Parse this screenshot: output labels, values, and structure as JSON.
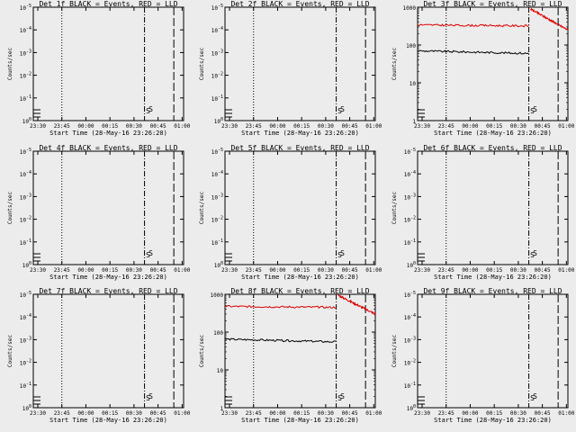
{
  "figure": {
    "background": "#ececec",
    "series_colors": {
      "events": "#000000",
      "lld": "#dd0000"
    },
    "time_ticks": [
      "23:30",
      "23:45",
      "00:00",
      "00:15",
      "00:30",
      "00:45",
      "01:00"
    ],
    "xlabel": "Start Time (28-May-16 23:26:20)"
  },
  "chart_data": [
    {
      "type": "line",
      "title": "Det 1f BLACK = Events, RED = LLD",
      "ylabel": "Counts/sec",
      "ytick_labels": [
        "10^0",
        "10^-1",
        "10^-2",
        "10^-3",
        "10^-4",
        "10^-5"
      ],
      "has_data": false,
      "markers": [
        "a",
        "b",
        "c"
      ],
      "symbols": [
        "S",
        "S"
      ],
      "series": []
    },
    {
      "type": "line",
      "title": "Det 2f BLACK = Events, RED = LLD",
      "ylabel": "Counts/sec",
      "ytick_labels": [
        "10^0",
        "10^-1",
        "10^-2",
        "10^-3",
        "10^-4",
        "10^-5"
      ],
      "has_data": false,
      "markers": [
        "a",
        "b",
        "c"
      ],
      "symbols": [
        "S",
        "S"
      ],
      "series": []
    },
    {
      "type": "line",
      "title": "Det 3f BLACK = Events, RED = LLD",
      "ylabel": "Counts/sec",
      "ytick_labels": [
        "1",
        "10",
        "100",
        "1000"
      ],
      "yscale": "log",
      "ylim": [
        1,
        1000
      ],
      "has_data": true,
      "markers": [
        "a",
        "b",
        "c"
      ],
      "symbols": [
        "S",
        "S"
      ],
      "series": [
        {
          "kind": "events",
          "segments": [
            {
              "x": [
                0,
                0.74
              ],
              "values": [
                70,
                60
              ]
            }
          ]
        },
        {
          "kind": "lld",
          "segments": [
            {
              "x": [
                0,
                0.74
              ],
              "values": [
                340,
                320
              ]
            },
            {
              "x": [
                0.75,
                1.0
              ],
              "values": [
                900,
                250
              ]
            }
          ]
        }
      ]
    },
    {
      "type": "line",
      "title": "Det 4f BLACK = Events, RED = LLD",
      "ylabel": "Counts/sec",
      "ytick_labels": [
        "10^0",
        "10^-1",
        "10^-2",
        "10^-3",
        "10^-4",
        "10^-5"
      ],
      "has_data": false,
      "markers": [
        "a",
        "b",
        "c"
      ],
      "symbols": [
        "S",
        "S"
      ],
      "series": []
    },
    {
      "type": "line",
      "title": "Det 5f BLACK = Events, RED = LLD",
      "ylabel": "Counts/sec",
      "ytick_labels": [
        "10^0",
        "10^-1",
        "10^-2",
        "10^-3",
        "10^-4",
        "10^-5"
      ],
      "has_data": false,
      "markers": [
        "a",
        "b",
        "c"
      ],
      "symbols": [
        "S",
        "S"
      ],
      "series": []
    },
    {
      "type": "line",
      "title": "Det 6f BLACK = Events, RED = LLD",
      "ylabel": "Counts/sec",
      "ytick_labels": [
        "10^0",
        "10^-1",
        "10^-2",
        "10^-3",
        "10^-4",
        "10^-5"
      ],
      "has_data": false,
      "markers": [
        "a",
        "b",
        "c"
      ],
      "symbols": [
        "S",
        "S"
      ],
      "series": []
    },
    {
      "type": "line",
      "title": "Det 7f BLACK = Events, RED = LLD",
      "ylabel": "Counts/sec",
      "ytick_labels": [
        "10^0",
        "10^-1",
        "10^-2",
        "10^-3",
        "10^-4",
        "10^-5"
      ],
      "has_data": false,
      "markers": [
        "a",
        "b",
        "c"
      ],
      "symbols": [
        "S",
        "S"
      ],
      "series": []
    },
    {
      "type": "line",
      "title": "Det 8f BLACK = Events, RED = LLD",
      "ylabel": "Counts/sec",
      "ytick_labels": [
        "1",
        "10",
        "100",
        "1000"
      ],
      "yscale": "log",
      "ylim": [
        1,
        1000
      ],
      "has_data": true,
      "markers": [
        "a",
        "b",
        "c"
      ],
      "symbols": [
        "S",
        "S"
      ],
      "series": [
        {
          "kind": "events",
          "segments": [
            {
              "x": [
                0,
                0.74
              ],
              "values": [
                65,
                55
              ]
            }
          ]
        },
        {
          "kind": "lld",
          "segments": [
            {
              "x": [
                0,
                0.74
              ],
              "values": [
                480,
                450
              ]
            },
            {
              "x": [
                0.75,
                1.0
              ],
              "values": [
                950,
                300
              ]
            }
          ]
        }
      ]
    },
    {
      "type": "line",
      "title": "Det 9f BLACK = Events, RED = LLD",
      "ylabel": "Counts/sec",
      "ytick_labels": [
        "10^0",
        "10^-1",
        "10^-2",
        "10^-3",
        "10^-4",
        "10^-5"
      ],
      "has_data": false,
      "markers": [
        "a",
        "b",
        "c"
      ],
      "symbols": [
        "S",
        "S"
      ],
      "series": []
    }
  ]
}
